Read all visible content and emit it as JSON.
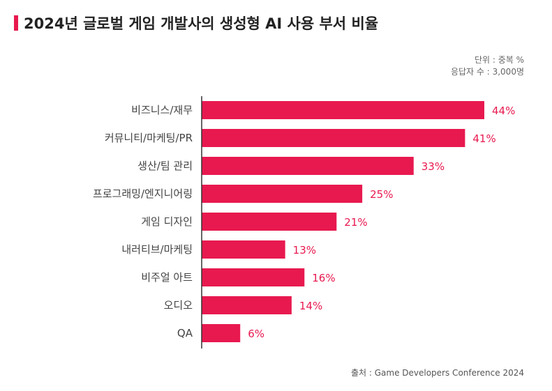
{
  "title": "2024년 글로벌 게임 개발사의 생성형 AI 사용 부서 비율",
  "unit_note": "단위 : 중복 %",
  "respondents_note": "응답자 수 : 3,000명",
  "source_note": "출처 : Game Developers Conference 2024",
  "colors": {
    "bar": "#e8194f",
    "value_text": "#e8194f",
    "accent": "#e8194f",
    "axis": "#333333"
  },
  "chart_data": {
    "type": "bar",
    "orientation": "horizontal",
    "title": "2024년 글로벌 게임 개발사의 생성형 AI 사용 부서 비율",
    "xlabel": "",
    "ylabel": "",
    "xlim": [
      0,
      44
    ],
    "grid": false,
    "categories": [
      "비즈니스/재무",
      "커뮤니티/마케팅/PR",
      "생산/팀 관리",
      "프로그래밍/엔지니어링",
      "게임 디자인",
      "내러티브/마케팅",
      "비주얼 아트",
      "오디오",
      "QA"
    ],
    "values": [
      44,
      41,
      33,
      25,
      21,
      13,
      16,
      14,
      6
    ],
    "value_labels": [
      "44%",
      "41%",
      "33%",
      "25%",
      "21%",
      "13%",
      "16%",
      "14%",
      "6%"
    ]
  }
}
